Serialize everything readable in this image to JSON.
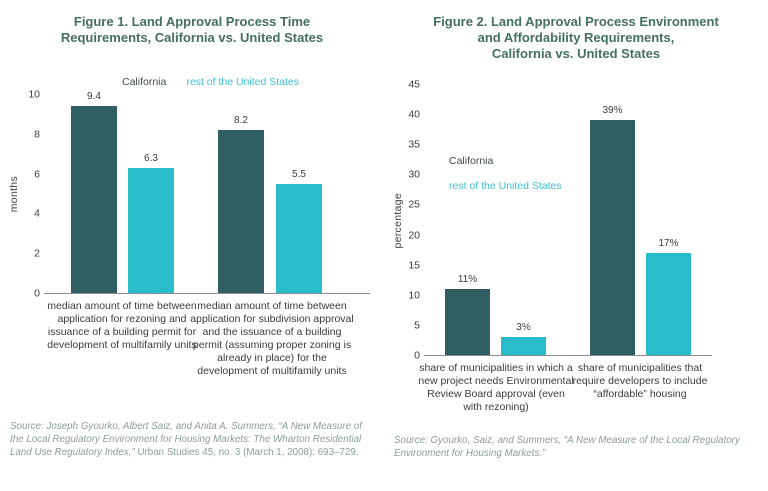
{
  "colors": {
    "california_bar": "#2f5f62",
    "rest_us_bar": "#2abccb",
    "title_text": "#44705e",
    "legend_california_text": "#3e4b4e",
    "legend_rest_us_text": "#3fc0d6",
    "axis_text": "#3c3c3c",
    "source_text": "#8c9e96",
    "axis_line": "#8e8e8e",
    "background": "#ffffff"
  },
  "chart_data": [
    {
      "type": "bar",
      "title": "Figure 1. Land Approval Process Time Requirements, California vs. United States",
      "title_lines": [
        "Figure 1. Land Approval Process Time",
        "Requirements, California vs. United States"
      ],
      "xlabel": "",
      "ylabel": "months",
      "ylim": [
        0,
        10
      ],
      "yticks": [
        0,
        2,
        4,
        6,
        8,
        10
      ],
      "grid": false,
      "legend_position": "top-row",
      "categories": [
        "median amount of time between application for rezoning and issuance of a building permit for development of multifamily units",
        "median amount of time between application for subdivision approval and the issuance of a building permit (assuming proper zoning is already in place) for the development of multifamily units"
      ],
      "series": [
        {
          "name": "California",
          "values": [
            9.4,
            8.2
          ],
          "labels": [
            "9.4",
            "8.2"
          ]
        },
        {
          "name": "rest of the United States",
          "values": [
            6.3,
            5.5
          ],
          "labels": [
            "6.3",
            "5.5"
          ]
        }
      ],
      "source": "Source: Joseph Gyourko, Albert Saiz, and Anita A. Summers, “A New Measure of the Local Regulatory Environment for Housing Markets: The Wharton Residential Land Use Regulatory Index,” Urban Studies 45, no. 3 (March 1, 2008): 693–729.",
      "source_italic": "Source: Joseph Gyourko, Albert Saiz, and Anita A. Summers, “A New Measure of the Local Regulatory Environment for Housing Markets: The Wharton Residential Land Use Regulatory Index,”",
      "source_roman": " Urban Studies 45, no. 3 (March 1, 2008): 693–729."
    },
    {
      "type": "bar",
      "title": "Figure 2. Land Approval Process Environment and Affordability Requirements, California vs. United States",
      "title_lines": [
        "Figure 2. Land Approval Process Environment",
        "and Affordability Requirements,",
        "California vs. United States"
      ],
      "xlabel": "",
      "ylabel": "percentage",
      "ylim": [
        0,
        45
      ],
      "yticks": [
        0,
        5,
        10,
        15,
        20,
        25,
        30,
        35,
        40,
        45
      ],
      "grid": false,
      "legend_position": "inside-upper-left",
      "categories": [
        "share of municipalities in which a new project needs Environmental Review Board approval (even with rezoning)",
        "share of municipalities that require developers to include “affordable” housing"
      ],
      "series": [
        {
          "name": "California",
          "values": [
            11,
            39
          ],
          "labels": [
            "11%",
            "39%"
          ]
        },
        {
          "name": "rest of the United States",
          "values": [
            3,
            17
          ],
          "labels": [
            "3%",
            "17%"
          ]
        }
      ],
      "source": "Source: Gyourko, Saiz, and Summers, “A New Measure of the Local Regulatory Environment for Housing Markets.”",
      "source_italic": "Source: Gyourko, Saiz, and Summers, “A New Measure of the Local Regulatory Environment for Housing Markets.”",
      "source_roman": ""
    }
  ]
}
